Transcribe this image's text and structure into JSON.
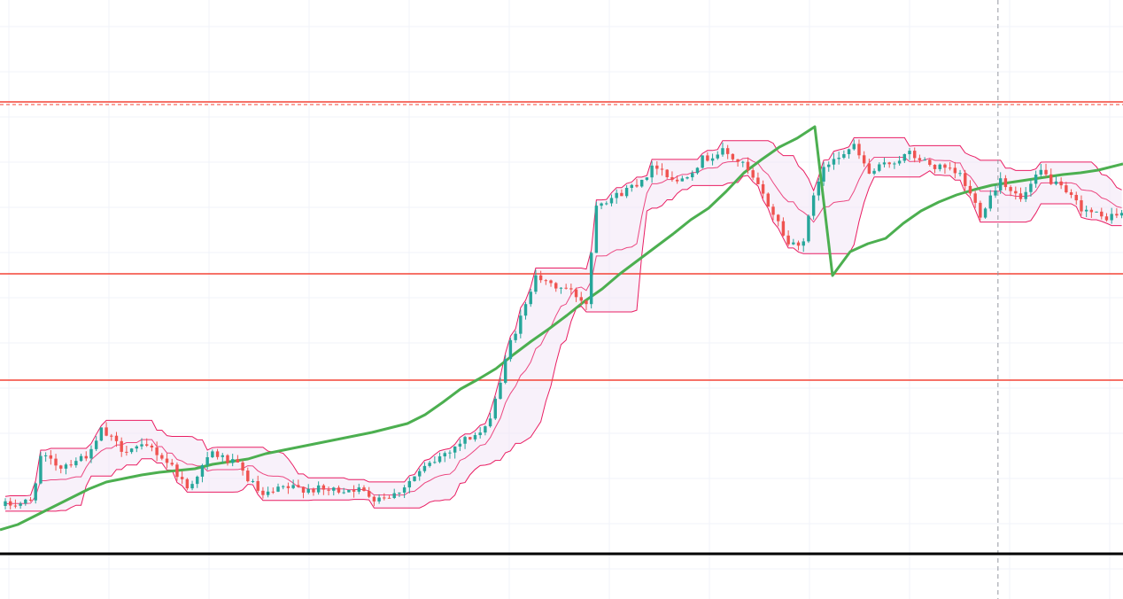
{
  "chart_data": {
    "type": "candlestick",
    "title": "",
    "xlabel": "",
    "ylabel": "",
    "ylim": [
      0,
      676
    ],
    "x_count": 222,
    "grid": true,
    "legend": "none",
    "colors": {
      "up": "#26a69a",
      "down": "#ef5350",
      "band_line": "#e91e63",
      "band_fill": "#f3e5f5",
      "ma_line": "#4caf50",
      "level_line": "#f44336",
      "baseline": "#000000",
      "crosshair": "#9598a1",
      "grid": "#f0f3fa"
    },
    "horizontal_levels": [
      {
        "value": 561,
        "style": "solid"
      },
      {
        "value": 558,
        "style": "dashed"
      },
      {
        "value": 367,
        "style": "solid"
      },
      {
        "value": 247,
        "style": "solid"
      }
    ],
    "baseline_value": 51,
    "crosshair_x": 196.5,
    "moving_average": [
      [
        0,
        78
      ],
      [
        20,
        84
      ],
      [
        40,
        94
      ],
      [
        60,
        104
      ],
      [
        80,
        114
      ],
      [
        100,
        124
      ],
      [
        120,
        132
      ],
      [
        140,
        136
      ],
      [
        160,
        140
      ],
      [
        180,
        143
      ],
      [
        200,
        145
      ],
      [
        220,
        147
      ],
      [
        240,
        152
      ],
      [
        260,
        155
      ],
      [
        280,
        158
      ],
      [
        300,
        164
      ],
      [
        320,
        168
      ],
      [
        340,
        172
      ],
      [
        360,
        176
      ],
      [
        380,
        180
      ],
      [
        400,
        184
      ],
      [
        420,
        188
      ],
      [
        440,
        193
      ],
      [
        460,
        198
      ],
      [
        480,
        208
      ],
      [
        500,
        222
      ],
      [
        520,
        237
      ],
      [
        540,
        248
      ],
      [
        560,
        260
      ],
      [
        580,
        276
      ],
      [
        600,
        291
      ],
      [
        620,
        305
      ],
      [
        640,
        320
      ],
      [
        660,
        336
      ],
      [
        680,
        350
      ],
      [
        700,
        367
      ],
      [
        720,
        382
      ],
      [
        740,
        397
      ],
      [
        760,
        412
      ],
      [
        780,
        428
      ],
      [
        800,
        441
      ],
      [
        820,
        460
      ],
      [
        840,
        481
      ],
      [
        860,
        496
      ],
      [
        880,
        510
      ],
      [
        900,
        520
      ],
      [
        920,
        533
      ],
      [
        940,
        365
      ],
      [
        960,
        392
      ],
      [
        980,
        401
      ],
      [
        1000,
        407
      ],
      [
        1020,
        424
      ],
      [
        1040,
        438
      ],
      [
        1060,
        448
      ],
      [
        1080,
        456
      ],
      [
        1100,
        462
      ],
      [
        1120,
        467
      ],
      [
        1140,
        470
      ],
      [
        1160,
        473
      ],
      [
        1180,
        476
      ],
      [
        1200,
        479
      ],
      [
        1220,
        481
      ],
      [
        1240,
        484
      ],
      [
        1268,
        491
      ]
    ]
  }
}
